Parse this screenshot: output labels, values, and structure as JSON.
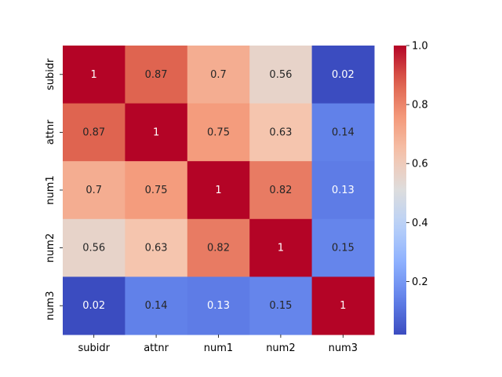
{
  "chart_data": {
    "type": "heatmap",
    "title": "",
    "xlabel": "",
    "ylabel": "",
    "x_categories": [
      "subidr",
      "attnr",
      "num1",
      "num2",
      "num3"
    ],
    "y_categories": [
      "subidr",
      "attnr",
      "num1",
      "num2",
      "num3"
    ],
    "values": [
      [
        1,
        0.87,
        0.7,
        0.56,
        0.02
      ],
      [
        0.87,
        1,
        0.75,
        0.63,
        0.14
      ],
      [
        0.7,
        0.75,
        1,
        0.82,
        0.13
      ],
      [
        0.56,
        0.63,
        0.82,
        1,
        0.15
      ],
      [
        0.02,
        0.14,
        0.13,
        0.15,
        1
      ]
    ],
    "annotations": [
      [
        "1",
        "0.87",
        "0.7",
        "0.56",
        "0.02"
      ],
      [
        "0.87",
        "1",
        "0.75",
        "0.63",
        "0.14"
      ],
      [
        "0.7",
        "0.75",
        "1",
        "0.82",
        "0.13"
      ],
      [
        "0.56",
        "0.63",
        "0.82",
        "1",
        "0.15"
      ],
      [
        "0.02",
        "0.14",
        "0.13",
        "0.15",
        "1"
      ]
    ],
    "colormap": "coolwarm",
    "vmin": 0.02,
    "vmax": 1.0,
    "colorbar": {
      "ticks": [
        0.2,
        0.4,
        0.6,
        0.8,
        1.0
      ],
      "tick_labels": [
        "0.2",
        "0.4",
        "0.6",
        "0.8",
        "1.0"
      ]
    }
  }
}
